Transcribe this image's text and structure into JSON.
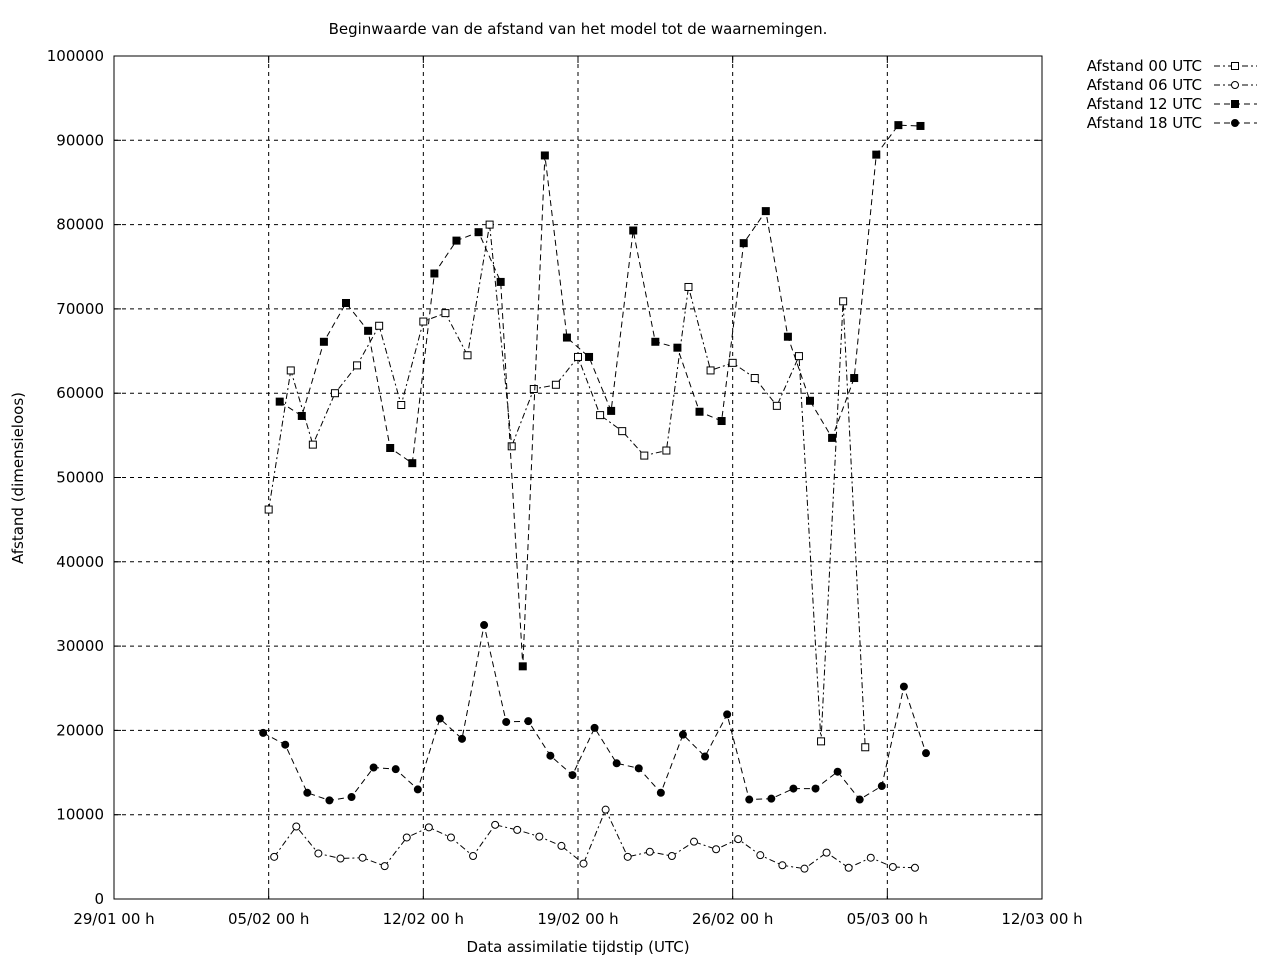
{
  "chart_data": {
    "type": "line",
    "title": "Beginwaarde van de afstand van het model tot de waarnemingen.",
    "xlabel": "Data assimilatie tijdstip (UTC)",
    "ylabel": "Afstand (dimensieloos)",
    "xlim": [
      "2023-01-29 00:00",
      "2023-03-12 00:00"
    ],
    "ylim": [
      0,
      100000
    ],
    "grid": true,
    "legend_position": "top-right outside plot",
    "x_ticks": [
      "29/01 00 h",
      "05/02 00 h",
      "12/02 00 h",
      "19/02 00 h",
      "26/02 00 h",
      "05/03 00 h",
      "12/03 00 h"
    ],
    "y_ticks": [
      "0",
      "10000",
      "20000",
      "30000",
      "40000",
      "50000",
      "60000",
      "70000",
      "80000",
      "90000",
      "100000"
    ],
    "series": [
      {
        "name": "Afstand 00 UTC",
        "marker": "open-square",
        "dash": "6 3 2 3",
        "x": [
          "2023-02-05 00:00",
          "2023-02-06 00:00",
          "2023-02-07 00:00",
          "2023-02-08 00:00",
          "2023-02-09 00:00",
          "2023-02-10 00:00",
          "2023-02-11 00:00",
          "2023-02-12 00:00",
          "2023-02-13 00:00",
          "2023-02-14 00:00",
          "2023-02-15 00:00",
          "2023-02-16 00:00",
          "2023-02-17 00:00",
          "2023-02-18 00:00",
          "2023-02-19 00:00",
          "2023-02-20 00:00",
          "2023-02-21 00:00",
          "2023-02-22 00:00",
          "2023-02-23 00:00",
          "2023-02-24 00:00",
          "2023-02-25 00:00",
          "2023-02-26 00:00",
          "2023-02-27 00:00",
          "2023-02-28 00:00",
          "2023-03-01 00:00",
          "2023-03-02 00:00",
          "2023-03-03 00:00",
          "2023-03-04 00:00",
          "2023-03-05 00:00",
          "2023-03-06 00:00"
        ],
        "values": [
          46200,
          62700,
          53900,
          60000,
          63300,
          68000,
          58600,
          68500,
          69500,
          64500,
          80000,
          53700,
          60500,
          61000,
          64300,
          57400,
          55500,
          52600,
          53200,
          72600,
          62700,
          63600,
          61800,
          58500,
          64400,
          18700,
          70900,
          18000,
          null,
          null
        ]
      },
      {
        "name": "Afstand 06 UTC",
        "marker": "open-circle",
        "dash": "6 3 2 3",
        "x": [
          "2023-02-05 06:00",
          "2023-02-06 06:00",
          "2023-02-07 06:00",
          "2023-02-08 06:00",
          "2023-02-09 06:00",
          "2023-02-10 06:00",
          "2023-02-11 06:00",
          "2023-02-12 06:00",
          "2023-02-13 06:00",
          "2023-02-14 06:00",
          "2023-02-15 06:00",
          "2023-02-16 06:00",
          "2023-02-17 06:00",
          "2023-02-18 06:00",
          "2023-02-19 06:00",
          "2023-02-20 06:00",
          "2023-02-21 06:00",
          "2023-02-22 06:00",
          "2023-02-23 06:00",
          "2023-02-24 06:00",
          "2023-02-25 06:00",
          "2023-02-26 06:00",
          "2023-02-27 06:00",
          "2023-02-28 06:00",
          "2023-03-01 06:00",
          "2023-03-02 06:00",
          "2023-03-03 06:00",
          "2023-03-04 06:00",
          "2023-03-05 06:00",
          "2023-03-06 06:00"
        ],
        "values": [
          5000,
          8600,
          5400,
          4800,
          4900,
          3900,
          7300,
          8500,
          7300,
          5100,
          8800,
          8200,
          7400,
          6300,
          4200,
          10600,
          5000,
          5600,
          5100,
          6800,
          5900,
          7100,
          5200,
          4000,
          3600,
          5500,
          3700,
          4900,
          3800,
          3700
        ]
      },
      {
        "name": "Afstand 12 UTC",
        "marker": "filled-square",
        "dash": "6 4",
        "x": [
          "2023-02-05 12:00",
          "2023-02-06 12:00",
          "2023-02-07 12:00",
          "2023-02-08 12:00",
          "2023-02-09 12:00",
          "2023-02-10 12:00",
          "2023-02-11 12:00",
          "2023-02-12 12:00",
          "2023-02-13 12:00",
          "2023-02-14 12:00",
          "2023-02-15 12:00",
          "2023-02-16 12:00",
          "2023-02-17 12:00",
          "2023-02-18 12:00",
          "2023-02-19 12:00",
          "2023-02-20 12:00",
          "2023-02-21 12:00",
          "2023-02-22 12:00",
          "2023-02-23 12:00",
          "2023-02-24 12:00",
          "2023-02-25 12:00",
          "2023-02-26 12:00",
          "2023-02-27 12:00",
          "2023-02-28 12:00",
          "2023-03-01 12:00",
          "2023-03-02 12:00",
          "2023-03-03 12:00",
          "2023-03-04 12:00",
          "2023-03-05 12:00",
          "2023-03-06 12:00"
        ],
        "values": [
          59000,
          57300,
          66100,
          70700,
          67400,
          53500,
          51700,
          74200,
          78100,
          79100,
          73200,
          27600,
          88200,
          66600,
          64300,
          57900,
          79300,
          66100,
          65400,
          57800,
          56700,
          77800,
          81600,
          66700,
          59100,
          54700,
          61800,
          88300,
          91800,
          91700
        ]
      },
      {
        "name": "Afstand 18 UTC",
        "marker": "filled-circle",
        "dash": "6 4",
        "x": [
          "2023-02-04 18:00",
          "2023-02-05 18:00",
          "2023-02-06 18:00",
          "2023-02-07 18:00",
          "2023-02-08 18:00",
          "2023-02-09 18:00",
          "2023-02-10 18:00",
          "2023-02-11 18:00",
          "2023-02-12 18:00",
          "2023-02-13 18:00",
          "2023-02-14 18:00",
          "2023-02-15 18:00",
          "2023-02-16 18:00",
          "2023-02-17 18:00",
          "2023-02-18 18:00",
          "2023-02-19 18:00",
          "2023-02-20 18:00",
          "2023-02-21 18:00",
          "2023-02-22 18:00",
          "2023-02-23 18:00",
          "2023-02-24 18:00",
          "2023-02-25 18:00",
          "2023-02-26 18:00",
          "2023-02-27 18:00",
          "2023-02-28 18:00",
          "2023-03-01 18:00",
          "2023-03-02 18:00",
          "2023-03-03 18:00",
          "2023-03-04 18:00",
          "2023-03-05 18:00",
          "2023-03-06 18:00"
        ],
        "values": [
          19700,
          18300,
          12600,
          11700,
          12100,
          15600,
          15400,
          13000,
          21400,
          19000,
          32500,
          21000,
          21100,
          17000,
          14700,
          20300,
          16100,
          15500,
          12600,
          19500,
          16900,
          21900,
          11800,
          11900,
          13100,
          13100,
          15100,
          11800,
          13400,
          25200,
          17300
        ]
      }
    ]
  }
}
